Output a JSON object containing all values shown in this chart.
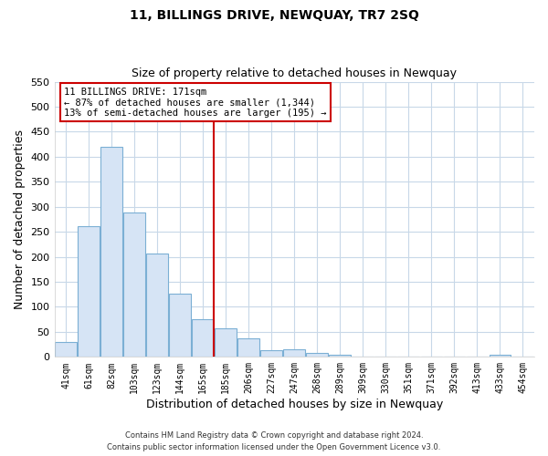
{
  "title": "11, BILLINGS DRIVE, NEWQUAY, TR7 2SQ",
  "subtitle": "Size of property relative to detached houses in Newquay",
  "xlabel": "Distribution of detached houses by size in Newquay",
  "ylabel": "Number of detached properties",
  "bar_labels": [
    "41sqm",
    "61sqm",
    "82sqm",
    "103sqm",
    "123sqm",
    "144sqm",
    "165sqm",
    "185sqm",
    "206sqm",
    "227sqm",
    "247sqm",
    "268sqm",
    "289sqm",
    "309sqm",
    "330sqm",
    "351sqm",
    "371sqm",
    "392sqm",
    "413sqm",
    "433sqm",
    "454sqm"
  ],
  "bar_values": [
    30,
    262,
    420,
    289,
    207,
    126,
    75,
    57,
    37,
    14,
    15,
    7,
    5,
    0,
    0,
    0,
    0,
    0,
    0,
    5,
    0
  ],
  "bar_facecolor": "#d6e4f5",
  "bar_edgecolor": "#7bafd4",
  "vline_color": "#cc0000",
  "ylim": [
    0,
    550
  ],
  "yticks": [
    0,
    50,
    100,
    150,
    200,
    250,
    300,
    350,
    400,
    450,
    500,
    550
  ],
  "annotation_title": "11 BILLINGS DRIVE: 171sqm",
  "annotation_line1": "← 87% of detached houses are smaller (1,344)",
  "annotation_line2": "13% of semi-detached houses are larger (195) →",
  "footer_line1": "Contains HM Land Registry data © Crown copyright and database right 2024.",
  "footer_line2": "Contains public sector information licensed under the Open Government Licence v3.0.",
  "background_color": "#ffffff",
  "grid_color": "#c8d8e8"
}
